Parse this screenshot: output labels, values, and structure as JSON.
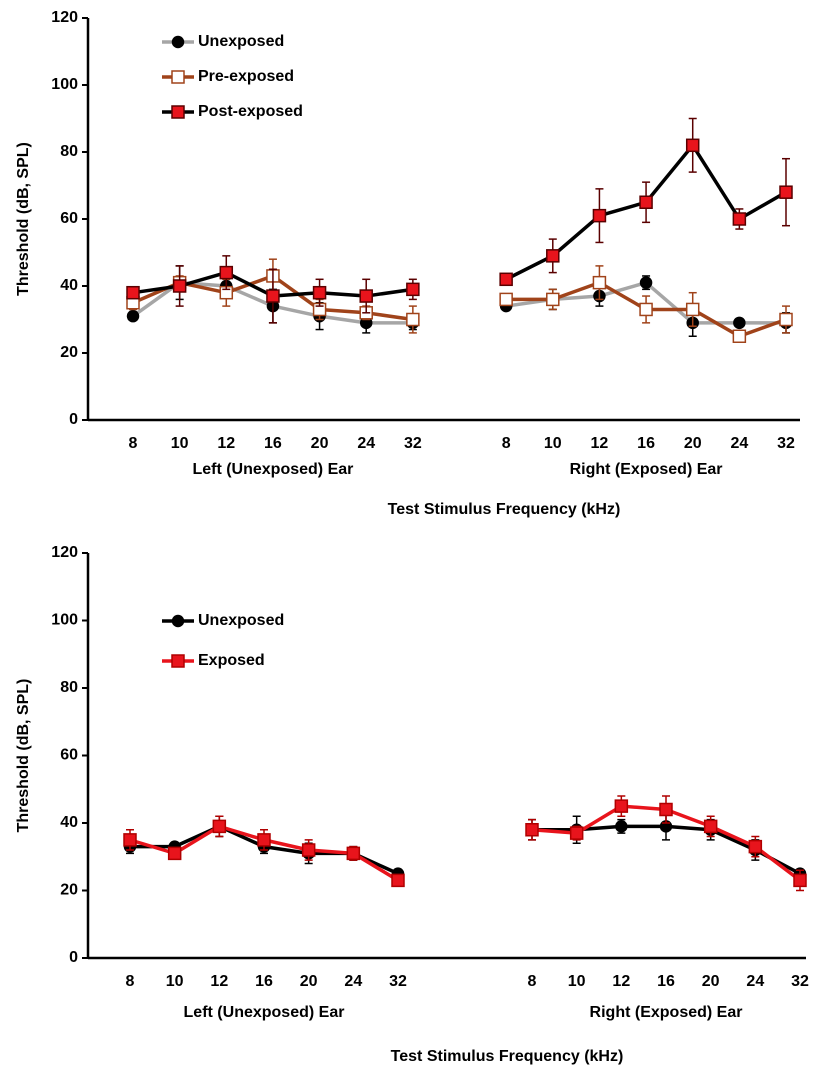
{
  "chart_data": [
    {
      "type": "line",
      "y_label": "Threshold (dB, SPL)",
      "x_label": "Test Stimulus Frequency (kHz)",
      "categories": [
        "8",
        "10",
        "12",
        "16",
        "20",
        "24",
        "32",
        null,
        "8",
        "10",
        "12",
        "16",
        "20",
        "24",
        "32"
      ],
      "group_labels": [
        "Left (Unexposed) Ear",
        "Right (Exposed) Ear"
      ],
      "ylim": [
        0,
        120
      ],
      "yticks": [
        0,
        20,
        40,
        60,
        80,
        100,
        120
      ],
      "series": [
        {
          "name": "Unexposed",
          "color": "#a6a6a6",
          "marker": "circle",
          "marker_fill": "#000000",
          "marker_stroke": "#000000",
          "values": [
            31,
            41,
            40,
            34,
            31,
            29,
            29,
            null,
            34,
            36,
            37,
            41,
            29,
            29,
            29
          ],
          "errors": [
            1,
            5,
            3,
            5,
            4,
            3,
            2,
            null,
            1,
            3,
            3,
            2,
            4,
            1,
            3
          ]
        },
        {
          "name": "Pre-exposed",
          "color": "#a0431a",
          "marker": "square",
          "marker_fill": "#ffffff",
          "marker_stroke": "#a0431a",
          "values": [
            35,
            41,
            38,
            43,
            33,
            32,
            30,
            null,
            36,
            36,
            41,
            33,
            33,
            25,
            30
          ],
          "errors": [
            2,
            2,
            4,
            5,
            3,
            2,
            4,
            null,
            1,
            3,
            5,
            4,
            5,
            1,
            4
          ]
        },
        {
          "name": "Post-exposed",
          "color": "#000000",
          "marker": "square",
          "marker_fill": "#e8141c",
          "marker_stroke": "#5a0000",
          "values": [
            38,
            40,
            44,
            37,
            38,
            37,
            39,
            null,
            42,
            49,
            61,
            65,
            82,
            60,
            68
          ],
          "errors": [
            1,
            6,
            5,
            8,
            4,
            5,
            3,
            null,
            1,
            5,
            8,
            6,
            8,
            3,
            10
          ]
        }
      ]
    },
    {
      "type": "line",
      "y_label": "Threshold (dB, SPL)",
      "x_label": "Test Stimulus Frequency (kHz)",
      "categories": [
        "8",
        "10",
        "12",
        "16",
        "20",
        "24",
        "32",
        null,
        null,
        "8",
        "10",
        "12",
        "16",
        "20",
        "24",
        "32"
      ],
      "group_labels": [
        "Left (Unexposed) Ear",
        "Right (Exposed) Ear"
      ],
      "ylim": [
        0,
        120
      ],
      "yticks": [
        0,
        20,
        40,
        60,
        80,
        100,
        120
      ],
      "series": [
        {
          "name": "Unexposed",
          "color": "#000000",
          "marker": "circle",
          "marker_fill": "#000000",
          "marker_stroke": "#000000",
          "values": [
            33,
            33,
            39,
            33,
            31,
            31,
            25,
            null,
            null,
            38,
            38,
            39,
            39,
            38,
            32,
            25
          ],
          "errors": [
            2,
            1,
            3,
            2,
            3,
            2,
            1,
            null,
            null,
            3,
            4,
            2,
            4,
            3,
            3,
            1
          ]
        },
        {
          "name": "Exposed",
          "color": "#e8141c",
          "marker": "square",
          "marker_fill": "#e8141c",
          "marker_stroke": "#b00000",
          "values": [
            35,
            31,
            39,
            35,
            32,
            31,
            23,
            null,
            null,
            38,
            37,
            45,
            44,
            39,
            33,
            23
          ],
          "errors": [
            3,
            1,
            3,
            3,
            3,
            2,
            1,
            null,
            null,
            3,
            2,
            3,
            4,
            3,
            3,
            3
          ]
        }
      ]
    }
  ]
}
